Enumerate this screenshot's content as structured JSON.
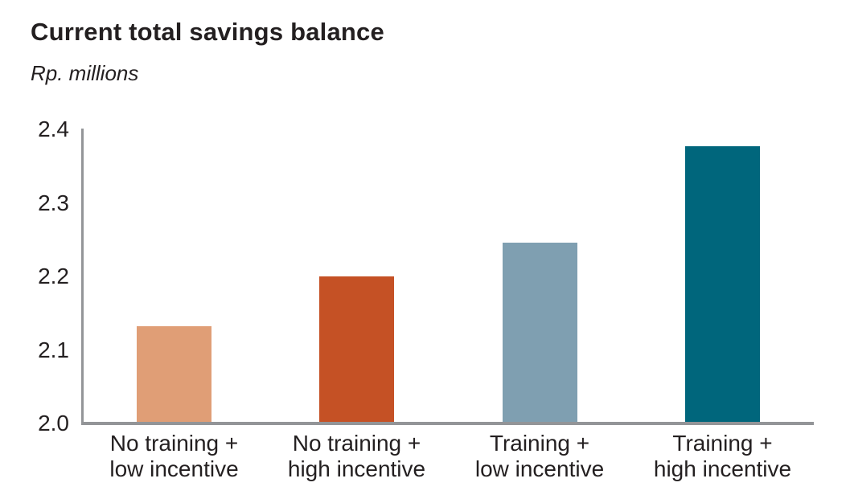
{
  "chart_data": {
    "type": "bar",
    "title": "Current total savings balance",
    "subtitle": "Rp. millions",
    "categories": [
      "No training +\nlow incentive",
      "No training +\nhigh incentive",
      "Training +\nlow incentive",
      "Training +\nhigh incentive"
    ],
    "values": [
      2.132,
      2.2,
      2.246,
      2.377
    ],
    "bar_colors": [
      "#E09E76",
      "#C55125",
      "#7F9FB1",
      "#00667C"
    ],
    "ylim": [
      2.0,
      2.4
    ],
    "yticks": [
      2.0,
      2.1,
      2.2,
      2.3,
      2.4
    ],
    "ytick_labels": [
      "2.0",
      "2.1",
      "2.2",
      "2.3",
      "2.4"
    ],
    "xlabel": "",
    "ylabel": "Rp. millions",
    "grid": false,
    "legend": "none",
    "axis_color": "#939598",
    "text_color": "#231F20",
    "background_color": "#FFFFFF"
  }
}
